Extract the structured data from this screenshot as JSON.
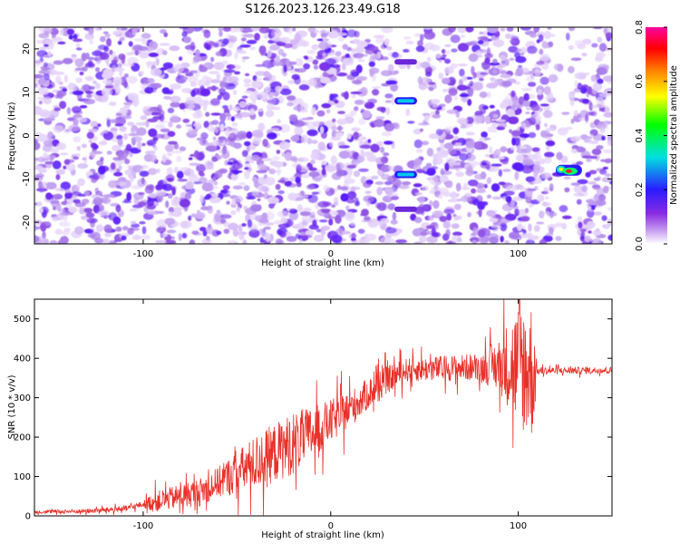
{
  "title": "S126.2023.126.23.49.G18",
  "colors": {
    "line": "#e8312a",
    "spectrogram_palette": [
      "#ffffff",
      "#c9a0f0",
      "#8a2be2",
      "#2a1bff",
      "#00e0e0",
      "#00ff00",
      "#ffff00",
      "#ff8000",
      "#ff0000",
      "#ff00a0"
    ]
  },
  "chart_data": [
    {
      "type": "heatmap",
      "xlabel": "Height of straight line (km)",
      "ylabel": "Frequency (Hz)",
      "xlim": [
        -158,
        150
      ],
      "ylim": [
        -25,
        25
      ],
      "xticks": [
        -100,
        0,
        100
      ],
      "yticks": [
        -20,
        -10,
        0,
        10,
        20
      ],
      "grid": false,
      "colorbar": {
        "label": "Normalized spectral amplitude",
        "range": [
          0.0,
          0.8
        ],
        "ticks": [
          "0.0",
          "0.2",
          "0.4",
          "0.6",
          "0.8"
        ]
      },
      "gaps_x": [
        [
          36,
          46
        ],
        [
          118,
          128
        ]
      ],
      "features": [
        {
          "x_range": [
            34,
            46
          ],
          "y": 8,
          "amplitude": 0.3
        },
        {
          "x_range": [
            34,
            46
          ],
          "y": -9,
          "amplitude": 0.2
        },
        {
          "x_range": [
            34,
            46
          ],
          "y": 17,
          "amplitude": 0.05
        },
        {
          "x_range": [
            34,
            46
          ],
          "y": -17,
          "amplitude": 0.05
        },
        {
          "x_range": [
            120,
            134
          ],
          "y": -8,
          "amplitude": 0.7
        }
      ]
    },
    {
      "type": "line",
      "xlabel": "Height of straight line (km)",
      "ylabel": "SNR (10 * v/v)",
      "xlim": [
        -158,
        150
      ],
      "ylim": [
        0,
        550
      ],
      "xticks": [
        -100,
        0,
        100
      ],
      "yticks": [
        0,
        100,
        200,
        300,
        400,
        500
      ],
      "grid": false,
      "trend": [
        {
          "x": -158,
          "y": 10
        },
        {
          "x": -130,
          "y": 12
        },
        {
          "x": -110,
          "y": 18
        },
        {
          "x": -95,
          "y": 35
        },
        {
          "x": -70,
          "y": 60
        },
        {
          "x": -50,
          "y": 110
        },
        {
          "x": -30,
          "y": 160
        },
        {
          "x": -10,
          "y": 210
        },
        {
          "x": 0,
          "y": 240
        },
        {
          "x": 10,
          "y": 270
        },
        {
          "x": 20,
          "y": 310
        },
        {
          "x": 30,
          "y": 345
        },
        {
          "x": 40,
          "y": 370
        },
        {
          "x": 60,
          "y": 375
        },
        {
          "x": 80,
          "y": 378
        },
        {
          "x": 95,
          "y": 385
        },
        {
          "x": 110,
          "y": 368
        },
        {
          "x": 150,
          "y": 370
        }
      ],
      "noise_amplitude": [
        {
          "x": -158,
          "y": 4
        },
        {
          "x": -100,
          "y": 8
        },
        {
          "x": -95,
          "y": 25
        },
        {
          "x": -60,
          "y": 40
        },
        {
          "x": -40,
          "y": 70
        },
        {
          "x": -20,
          "y": 80
        },
        {
          "x": 0,
          "y": 55
        },
        {
          "x": 20,
          "y": 40
        },
        {
          "x": 40,
          "y": 30
        },
        {
          "x": 80,
          "y": 35
        },
        {
          "x": 90,
          "y": 70
        },
        {
          "x": 100,
          "y": 160
        },
        {
          "x": 108,
          "y": 180
        },
        {
          "x": 110,
          "y": 10
        },
        {
          "x": 150,
          "y": 8
        }
      ]
    }
  ]
}
